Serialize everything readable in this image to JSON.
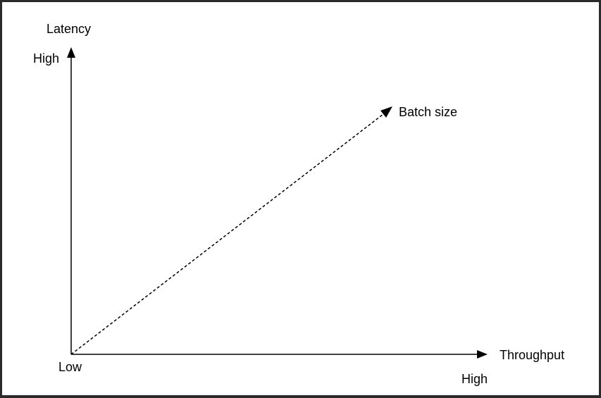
{
  "y_axis": {
    "title": "Latency",
    "high_label": "High"
  },
  "x_axis": {
    "title": "Throughput",
    "high_label": "High"
  },
  "origin_label": "Low",
  "trend_line": {
    "label": "Batch size",
    "style": "dashed"
  },
  "colors": {
    "background": "#ffffff",
    "stroke": "#000000",
    "frame": "#2a2a2a"
  }
}
